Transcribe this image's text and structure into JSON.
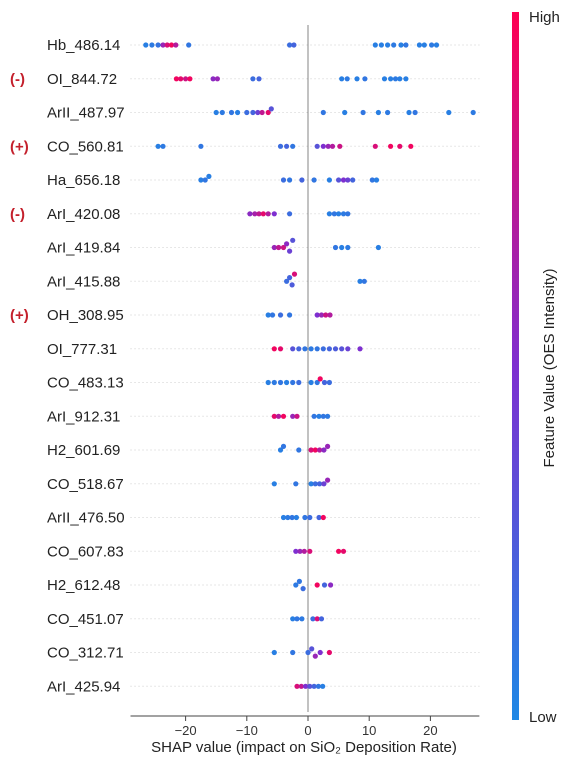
{
  "chart_data": {
    "type": "scatter",
    "subtype": "shap-beeswarm",
    "xlabel": "SHAP value (impact on SiO₂ Deposition Rate)",
    "xlim": [
      -29,
      28
    ],
    "xticks": [
      -20,
      -10,
      0,
      10,
      20
    ],
    "grid": "horizontal dotted per feature",
    "colorbar": {
      "label": "Feature Value (OES Intensity)",
      "high_label": "High",
      "low_label": "Low",
      "low_color": "#1e88e5",
      "high_color": "#ff0052",
      "placement": "right"
    },
    "features": [
      {
        "name": "Hb_486.14",
        "tag": "",
        "points": [
          {
            "x": -26.5,
            "c": 0.05
          },
          {
            "x": -25.5,
            "c": 0.08
          },
          {
            "x": -24.5,
            "c": 0.12
          },
          {
            "x": -23.7,
            "c": 0.6
          },
          {
            "x": -23.0,
            "c": 0.85
          },
          {
            "x": -22.3,
            "c": 0.95
          },
          {
            "x": -21.6,
            "c": 0.7
          },
          {
            "x": -19.5,
            "c": 0.1
          },
          {
            "x": -3.0,
            "c": 0.15
          },
          {
            "x": -2.3,
            "c": 0.2
          },
          {
            "x": 11.0,
            "c": 0.05
          },
          {
            "x": 12.0,
            "c": 0.05
          },
          {
            "x": 13.0,
            "c": 0.05
          },
          {
            "x": 14.0,
            "c": 0.08
          },
          {
            "x": 15.2,
            "c": 0.05
          },
          {
            "x": 16.0,
            "c": 0.1
          },
          {
            "x": 18.2,
            "c": 0.05
          },
          {
            "x": 19.0,
            "c": 0.05
          },
          {
            "x": 20.2,
            "c": 0.08
          },
          {
            "x": 21.0,
            "c": 0.05
          }
        ]
      },
      {
        "name": "OI_844.72",
        "tag": "(-)",
        "points": [
          {
            "x": -21.5,
            "c": 0.95
          },
          {
            "x": -20.8,
            "c": 0.9
          },
          {
            "x": -20.0,
            "c": 0.8
          },
          {
            "x": -19.3,
            "c": 0.95
          },
          {
            "x": -15.5,
            "c": 0.55
          },
          {
            "x": -14.8,
            "c": 0.6
          },
          {
            "x": -9.0,
            "c": 0.15
          },
          {
            "x": -8.0,
            "c": 0.2
          },
          {
            "x": 5.5,
            "c": 0.05
          },
          {
            "x": 6.4,
            "c": 0.08
          },
          {
            "x": 8.0,
            "c": 0.05
          },
          {
            "x": 9.3,
            "c": 0.1
          },
          {
            "x": 12.5,
            "c": 0.05
          },
          {
            "x": 13.5,
            "c": 0.05
          },
          {
            "x": 14.3,
            "c": 0.08
          },
          {
            "x": 15.0,
            "c": 0.05
          },
          {
            "x": 16.0,
            "c": 0.05
          }
        ]
      },
      {
        "name": "ArII_487.97",
        "tag": "",
        "points": [
          {
            "x": -15.0,
            "c": 0.05
          },
          {
            "x": -14.0,
            "c": 0.08
          },
          {
            "x": -12.5,
            "c": 0.1
          },
          {
            "x": -11.5,
            "c": 0.05
          },
          {
            "x": -10.0,
            "c": 0.15
          },
          {
            "x": -9.0,
            "c": 0.2
          },
          {
            "x": -8.2,
            "c": 0.4
          },
          {
            "x": -7.5,
            "c": 0.75
          },
          {
            "x": -6.5,
            "c": 0.9
          },
          {
            "x": -6.0,
            "c": 0.3
          },
          {
            "x": 2.5,
            "c": 0.1
          },
          {
            "x": 6.0,
            "c": 0.05
          },
          {
            "x": 9.0,
            "c": 0.1
          },
          {
            "x": 11.5,
            "c": 0.05
          },
          {
            "x": 13.0,
            "c": 0.08
          },
          {
            "x": 16.5,
            "c": 0.05
          },
          {
            "x": 17.5,
            "c": 0.1
          },
          {
            "x": 23.0,
            "c": 0.05
          },
          {
            "x": 27.0,
            "c": 0.08
          }
        ]
      },
      {
        "name": "CO_560.81",
        "tag": "(+)",
        "points": [
          {
            "x": -24.5,
            "c": 0.05
          },
          {
            "x": -23.7,
            "c": 0.08
          },
          {
            "x": -17.5,
            "c": 0.1
          },
          {
            "x": -4.5,
            "c": 0.15
          },
          {
            "x": -3.5,
            "c": 0.2
          },
          {
            "x": -2.5,
            "c": 0.1
          },
          {
            "x": 1.5,
            "c": 0.3
          },
          {
            "x": 2.5,
            "c": 0.5
          },
          {
            "x": 3.3,
            "c": 0.6
          },
          {
            "x": 4.0,
            "c": 0.7
          },
          {
            "x": 5.2,
            "c": 0.8
          },
          {
            "x": 11.0,
            "c": 0.85
          },
          {
            "x": 13.5,
            "c": 0.95
          },
          {
            "x": 15.0,
            "c": 0.9
          },
          {
            "x": 16.8,
            "c": 0.95
          }
        ]
      },
      {
        "name": "Ha_656.18",
        "tag": "",
        "points": [
          {
            "x": -17.5,
            "c": 0.05
          },
          {
            "x": -16.8,
            "c": 0.1
          },
          {
            "x": -16.2,
            "c": 0.05
          },
          {
            "x": -4.0,
            "c": 0.15
          },
          {
            "x": -3.0,
            "c": 0.1
          },
          {
            "x": -1.0,
            "c": 0.2
          },
          {
            "x": 1.0,
            "c": 0.1
          },
          {
            "x": 3.5,
            "c": 0.05
          },
          {
            "x": 5.0,
            "c": 0.3
          },
          {
            "x": 5.8,
            "c": 0.5
          },
          {
            "x": 6.5,
            "c": 0.4
          },
          {
            "x": 7.3,
            "c": 0.2
          },
          {
            "x": 10.5,
            "c": 0.1
          },
          {
            "x": 11.2,
            "c": 0.05
          }
        ]
      },
      {
        "name": "ArI_420.08",
        "tag": "(-)",
        "points": [
          {
            "x": -9.5,
            "c": 0.55
          },
          {
            "x": -8.7,
            "c": 0.65
          },
          {
            "x": -8.0,
            "c": 0.75
          },
          {
            "x": -7.3,
            "c": 0.9
          },
          {
            "x": -6.5,
            "c": 0.7
          },
          {
            "x": -5.5,
            "c": 0.5
          },
          {
            "x": -3.0,
            "c": 0.15
          },
          {
            "x": 3.5,
            "c": 0.05
          },
          {
            "x": 4.3,
            "c": 0.1
          },
          {
            "x": 5.0,
            "c": 0.05
          },
          {
            "x": 5.8,
            "c": 0.08
          },
          {
            "x": 6.5,
            "c": 0.1
          }
        ]
      },
      {
        "name": "ArI_419.84",
        "tag": "",
        "points": [
          {
            "x": -5.5,
            "c": 0.6
          },
          {
            "x": -4.8,
            "c": 0.75
          },
          {
            "x": -4.0,
            "c": 0.8
          },
          {
            "x": -3.5,
            "c": 0.55
          },
          {
            "x": -3.0,
            "c": 0.4
          },
          {
            "x": -2.5,
            "c": 0.3
          },
          {
            "x": 4.5,
            "c": 0.1
          },
          {
            "x": 5.5,
            "c": 0.05
          },
          {
            "x": 6.5,
            "c": 0.08
          },
          {
            "x": 11.5,
            "c": 0.05
          }
        ]
      },
      {
        "name": "ArI_415.88",
        "tag": "",
        "points": [
          {
            "x": -3.5,
            "c": 0.15
          },
          {
            "x": -3.0,
            "c": 0.2
          },
          {
            "x": -2.6,
            "c": 0.25
          },
          {
            "x": -2.2,
            "c": 0.85
          },
          {
            "x": 8.5,
            "c": 0.05
          },
          {
            "x": 9.2,
            "c": 0.1
          }
        ]
      },
      {
        "name": "OH_308.95",
        "tag": "(+)",
        "points": [
          {
            "x": -6.5,
            "c": 0.05
          },
          {
            "x": -5.8,
            "c": 0.1
          },
          {
            "x": -4.5,
            "c": 0.15
          },
          {
            "x": -3.0,
            "c": 0.1
          },
          {
            "x": 1.5,
            "c": 0.5
          },
          {
            "x": 2.2,
            "c": 0.6
          },
          {
            "x": 2.9,
            "c": 0.8
          },
          {
            "x": 3.6,
            "c": 0.7
          }
        ]
      },
      {
        "name": "OI_777.31",
        "tag": "",
        "points": [
          {
            "x": -5.5,
            "c": 0.95
          },
          {
            "x": -4.5,
            "c": 0.9
          },
          {
            "x": -2.5,
            "c": 0.3
          },
          {
            "x": -1.5,
            "c": 0.2
          },
          {
            "x": -0.5,
            "c": 0.1
          },
          {
            "x": 0.5,
            "c": 0.08
          },
          {
            "x": 1.5,
            "c": 0.1
          },
          {
            "x": 2.5,
            "c": 0.15
          },
          {
            "x": 3.5,
            "c": 0.2
          },
          {
            "x": 4.5,
            "c": 0.25
          },
          {
            "x": 5.5,
            "c": 0.3
          },
          {
            "x": 6.5,
            "c": 0.4
          },
          {
            "x": 8.5,
            "c": 0.5
          }
        ]
      },
      {
        "name": "CO_483.13",
        "tag": "",
        "points": [
          {
            "x": -6.5,
            "c": 0.05
          },
          {
            "x": -5.5,
            "c": 0.08
          },
          {
            "x": -4.5,
            "c": 0.1
          },
          {
            "x": -3.5,
            "c": 0.05
          },
          {
            "x": -2.5,
            "c": 0.1
          },
          {
            "x": -1.5,
            "c": 0.15
          },
          {
            "x": 0.5,
            "c": 0.05
          },
          {
            "x": 1.5,
            "c": 0.1
          },
          {
            "x": 2.0,
            "c": 0.95
          },
          {
            "x": 2.7,
            "c": 0.2
          },
          {
            "x": 3.5,
            "c": 0.15
          }
        ]
      },
      {
        "name": "ArI_912.31",
        "tag": "",
        "points": [
          {
            "x": -5.5,
            "c": 0.9
          },
          {
            "x": -4.8,
            "c": 0.7
          },
          {
            "x": -4.0,
            "c": 0.95
          },
          {
            "x": -2.5,
            "c": 0.6
          },
          {
            "x": -1.8,
            "c": 0.8
          },
          {
            "x": 1.0,
            "c": 0.1
          },
          {
            "x": 1.8,
            "c": 0.05
          },
          {
            "x": 2.5,
            "c": 0.1
          },
          {
            "x": 3.2,
            "c": 0.08
          }
        ]
      },
      {
        "name": "H2_601.69",
        "tag": "",
        "points": [
          {
            "x": -4.5,
            "c": 0.05
          },
          {
            "x": -4.0,
            "c": 0.1
          },
          {
            "x": -1.5,
            "c": 0.1
          },
          {
            "x": 0.5,
            "c": 0.85
          },
          {
            "x": 1.2,
            "c": 0.95
          },
          {
            "x": 1.9,
            "c": 0.7
          },
          {
            "x": 2.6,
            "c": 0.55
          },
          {
            "x": 3.2,
            "c": 0.6
          }
        ]
      },
      {
        "name": "CO_518.67",
        "tag": "",
        "points": [
          {
            "x": -5.5,
            "c": 0.05
          },
          {
            "x": -2.0,
            "c": 0.1
          },
          {
            "x": 0.5,
            "c": 0.05
          },
          {
            "x": 1.2,
            "c": 0.15
          },
          {
            "x": 1.9,
            "c": 0.2
          },
          {
            "x": 2.6,
            "c": 0.4
          },
          {
            "x": 3.2,
            "c": 0.6
          }
        ]
      },
      {
        "name": "ArII_476.50",
        "tag": "",
        "points": [
          {
            "x": -4.0,
            "c": 0.05
          },
          {
            "x": -3.3,
            "c": 0.08
          },
          {
            "x": -2.6,
            "c": 0.1
          },
          {
            "x": -1.9,
            "c": 0.05
          },
          {
            "x": -0.5,
            "c": 0.1
          },
          {
            "x": 0.3,
            "c": 0.15
          },
          {
            "x": 1.8,
            "c": 0.2
          },
          {
            "x": 2.5,
            "c": 0.95
          }
        ]
      },
      {
        "name": "CO_607.83",
        "tag": "",
        "points": [
          {
            "x": -2.0,
            "c": 0.5
          },
          {
            "x": -1.3,
            "c": 0.6
          },
          {
            "x": -0.6,
            "c": 0.7
          },
          {
            "x": 0.3,
            "c": 0.85
          },
          {
            "x": 5.0,
            "c": 0.95
          },
          {
            "x": 5.8,
            "c": 0.9
          }
        ]
      },
      {
        "name": "H2_612.48",
        "tag": "",
        "points": [
          {
            "x": -2.0,
            "c": 0.08
          },
          {
            "x": -1.4,
            "c": 0.1
          },
          {
            "x": -0.8,
            "c": 0.15
          },
          {
            "x": 1.5,
            "c": 0.95
          },
          {
            "x": 2.7,
            "c": 0.2
          },
          {
            "x": 3.7,
            "c": 0.55
          }
        ]
      },
      {
        "name": "CO_451.07",
        "tag": "",
        "points": [
          {
            "x": -2.5,
            "c": 0.05
          },
          {
            "x": -1.8,
            "c": 0.1
          },
          {
            "x": -1.0,
            "c": 0.08
          },
          {
            "x": 0.8,
            "c": 0.15
          },
          {
            "x": 1.5,
            "c": 0.85
          },
          {
            "x": 2.2,
            "c": 0.2
          }
        ]
      },
      {
        "name": "CO_312.71",
        "tag": "",
        "points": [
          {
            "x": -5.5,
            "c": 0.05
          },
          {
            "x": -2.5,
            "c": 0.1
          },
          {
            "x": 0.0,
            "c": 0.15
          },
          {
            "x": 0.6,
            "c": 0.3
          },
          {
            "x": 1.2,
            "c": 0.6
          },
          {
            "x": 2.0,
            "c": 0.5
          },
          {
            "x": 3.5,
            "c": 0.9
          }
        ]
      },
      {
        "name": "ArI_425.94",
        "tag": "",
        "points": [
          {
            "x": -1.8,
            "c": 0.85
          },
          {
            "x": -1.1,
            "c": 0.75
          },
          {
            "x": -0.4,
            "c": 0.5
          },
          {
            "x": 0.3,
            "c": 0.3
          },
          {
            "x": 1.0,
            "c": 0.2
          },
          {
            "x": 1.7,
            "c": 0.1
          },
          {
            "x": 2.4,
            "c": 0.05
          }
        ]
      }
    ]
  }
}
